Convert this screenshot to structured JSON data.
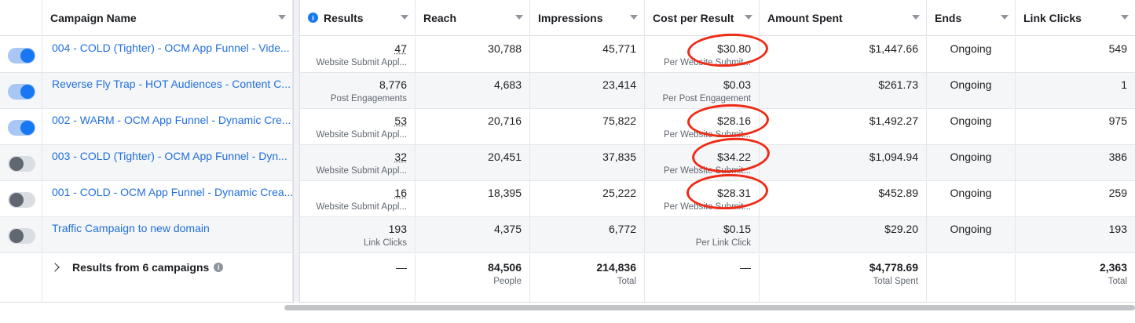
{
  "columns": {
    "campaign_name": "Campaign Name",
    "results": "Results",
    "reach": "Reach",
    "impressions": "Impressions",
    "cost_per_result": "Cost per Result",
    "amount_spent": "Amount Spent",
    "ends": "Ends",
    "link_clicks": "Link Clicks"
  },
  "rows": [
    {
      "toggle": "on",
      "name": "004 - COLD (Tighter) - OCM App Funnel - Vide...",
      "results": "47",
      "results_type": "Website Submit Appl...",
      "reach": "30,788",
      "impressions": "45,771",
      "cpr": "$30.80",
      "cpr_type": "Per Website Submit...",
      "spent": "$1,447.66",
      "ends": "Ongoing",
      "clicks": "549"
    },
    {
      "toggle": "on",
      "name": "Reverse Fly Trap - HOT Audiences - Content C...",
      "results": "8,776",
      "results_type": "Post Engagements",
      "reach": "4,683",
      "impressions": "23,414",
      "cpr": "$0.03",
      "cpr_type": "Per Post Engagement",
      "spent": "$261.73",
      "ends": "Ongoing",
      "clicks": "1"
    },
    {
      "toggle": "on",
      "name": "002 - WARM - OCM App Funnel - Dynamic Cre...",
      "results": "53",
      "results_type": "Website Submit Appl...",
      "reach": "20,716",
      "impressions": "75,822",
      "cpr": "$28.16",
      "cpr_type": "Per Website Submit...",
      "spent": "$1,492.27",
      "ends": "Ongoing",
      "clicks": "975"
    },
    {
      "toggle": "off",
      "name": "003 - COLD (Tighter) - OCM App Funnel - Dyn...",
      "results": "32",
      "results_type": "Website Submit Appl...",
      "reach": "20,451",
      "impressions": "37,835",
      "cpr": "$34.22",
      "cpr_type": "Per Website Submit...",
      "spent": "$1,094.94",
      "ends": "Ongoing",
      "clicks": "386"
    },
    {
      "toggle": "off",
      "name": "001 - COLD - OCM App Funnel - Dynamic Crea...",
      "results": "16",
      "results_type": "Website Submit Appl...",
      "reach": "18,395",
      "impressions": "25,222",
      "cpr": "$28.31",
      "cpr_type": "Per Website Submit...",
      "spent": "$452.89",
      "ends": "Ongoing",
      "clicks": "259"
    },
    {
      "toggle": "off",
      "name": "Traffic Campaign to new domain",
      "results": "193",
      "results_type": "Link Clicks",
      "reach": "4,375",
      "impressions": "6,772",
      "cpr": "$0.15",
      "cpr_type": "Per Link Click",
      "spent": "$29.20",
      "ends": "Ongoing",
      "clicks": "193"
    }
  ],
  "totals": {
    "label": "Results from 6 campaigns",
    "results": "—",
    "reach": "84,506",
    "reach_sub": "People",
    "impressions": "214,836",
    "impressions_sub": "Total",
    "cpr": "—",
    "spent": "$4,778.69",
    "spent_sub": "Total Spent",
    "clicks": "2,363",
    "clicks_sub": "Total"
  },
  "icons": {
    "info": "info-icon",
    "expand": "chevron-right-icon",
    "sort": "caret-down-icon"
  },
  "colors": {
    "link": "#216fdb",
    "toggle_on": "#1877f2",
    "annotation": "#ee2b17"
  },
  "glyphs": {
    "info": "i"
  }
}
